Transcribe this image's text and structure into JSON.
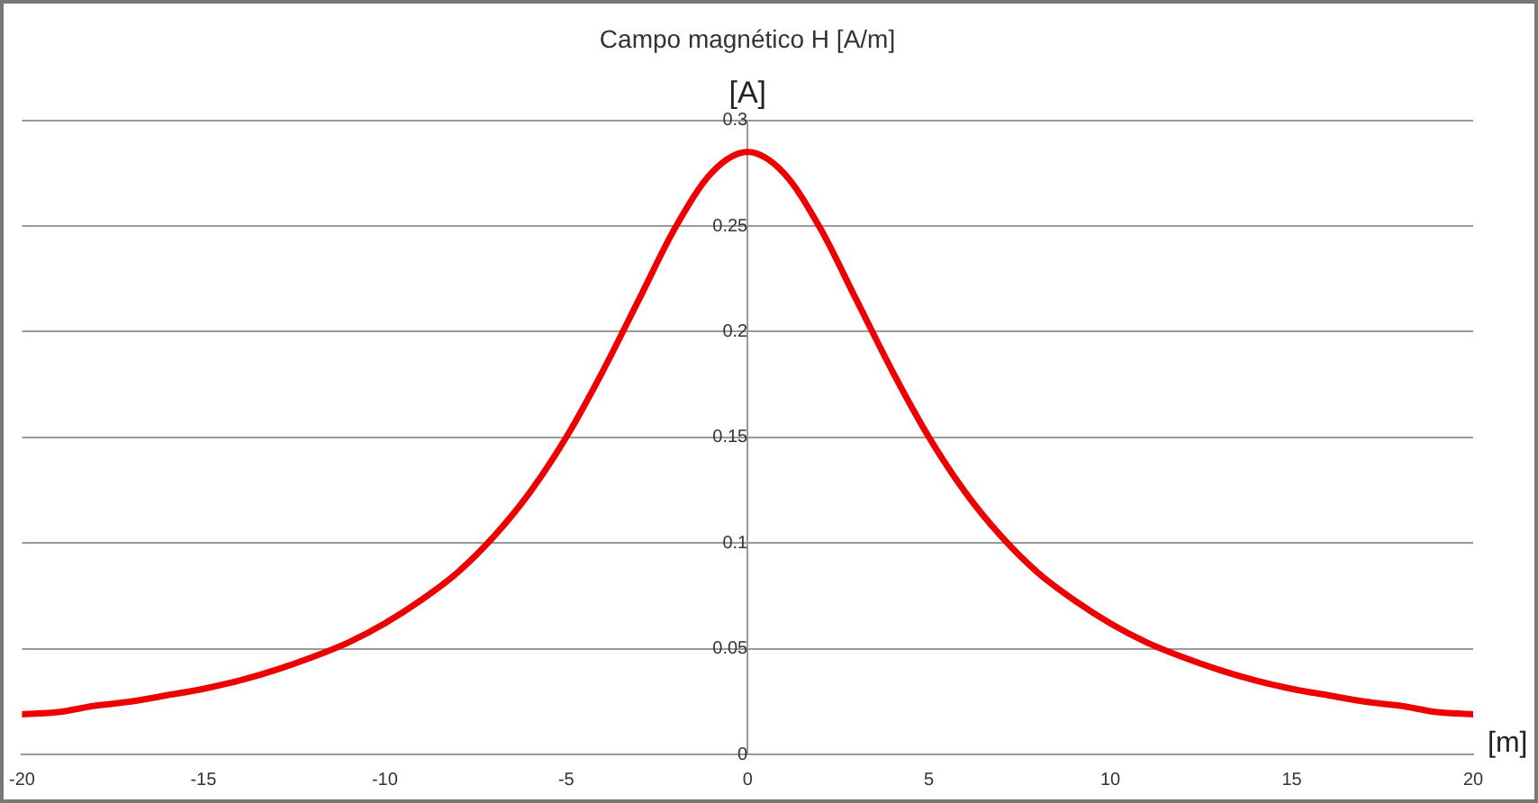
{
  "chart_data": {
    "type": "line",
    "title": "Campo magnético H [A/m]",
    "ylabel": "[A]",
    "xlabel": "[m]",
    "x": [
      -20,
      -19,
      -18,
      -17,
      -16,
      -15,
      -14,
      -13,
      -12,
      -11,
      -10,
      -9,
      -8,
      -7,
      -6,
      -5,
      -4,
      -3,
      -2,
      -1,
      0,
      1,
      2,
      3,
      4,
      5,
      6,
      7,
      8,
      9,
      10,
      11,
      12,
      13,
      14,
      15,
      16,
      17,
      18,
      19,
      20
    ],
    "series": [
      {
        "color": "#ee0000",
        "values": [
          0.019,
          0.02,
          0.023,
          0.025,
          0.028,
          0.031,
          0.035,
          0.04,
          0.046,
          0.053,
          0.062,
          0.073,
          0.086,
          0.103,
          0.124,
          0.15,
          0.181,
          0.215,
          0.249,
          0.275,
          0.285,
          0.275,
          0.249,
          0.215,
          0.181,
          0.15,
          0.124,
          0.103,
          0.086,
          0.073,
          0.062,
          0.053,
          0.046,
          0.04,
          0.035,
          0.031,
          0.028,
          0.025,
          0.023,
          0.02,
          0.019
        ]
      }
    ],
    "xlim": [
      -20,
      20
    ],
    "xticks": [
      -20,
      -15,
      -10,
      -5,
      0,
      5,
      10,
      15,
      20
    ],
    "ylim": [
      0,
      0.3
    ],
    "yticks": [
      0,
      0.05,
      0.1,
      0.15,
      0.2,
      0.25,
      0.3
    ],
    "grid": "y",
    "legend": false,
    "marker": "none",
    "line_style": "solid"
  }
}
